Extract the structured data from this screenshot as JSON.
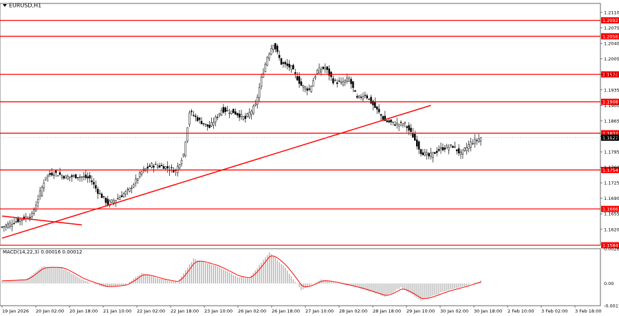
{
  "symbol_label": "EURUSD,H1",
  "macd_label": "MACD(14,22,3) 0.00016 0.00012",
  "current_price_label": "1.1827",
  "colors": {
    "bull_candle": "#ffffff",
    "bear_candle": "#000000",
    "levels": "#ff0000",
    "trendline": "#ff0000",
    "macd_hist": "#b0b0b0",
    "macd_signal": "#ff0000",
    "grid_bg": "#ffffff"
  },
  "chart_data": [
    {
      "type": "candlestick",
      "title": "EURUSD,H1",
      "ylim": [
        1.1584,
        1.2124
      ],
      "y_ticks": [
        "1.2110",
        "1.2075",
        "1.2040",
        "1.2005",
        "1.1970",
        "1.1935",
        "1.1900",
        "1.1865",
        "1.1830",
        "1.1795",
        "1.1760",
        "1.1725",
        "1.1690",
        "1.1655",
        "1.1620"
      ],
      "x_tick_labels": [
        "19 Jan 2026",
        "20 Jan 02:00",
        "20 Jan 18:00",
        "21 Jan 10:00",
        "22 Jan 02:00",
        "22 Jan 18:00",
        "23 Jan 10:00",
        "26 Jan 02:00",
        "26 Jan 18:00",
        "27 Jan 10:00",
        "28 Jan 02:00",
        "28 Jan 18:00",
        "29 Jan 10:00",
        "30 Jan 02:00",
        "30 Jan 18:00",
        "2 Feb 10:00",
        "3 Feb 02:00",
        "3 Feb 18:00"
      ],
      "horizontal_levels": [
        {
          "label": "1.2092",
          "value": 1.2092
        },
        {
          "label": "1.2056",
          "value": 1.2056
        },
        {
          "label": "1.1970",
          "value": 1.197
        },
        {
          "label": "1.1908",
          "value": 1.1908
        },
        {
          "label": "1.1837",
          "value": 1.1837
        },
        {
          "label": "1.1754",
          "value": 1.1754
        },
        {
          "label": "1.1666",
          "value": 1.1666
        },
        {
          "label": "1.1584",
          "value": 1.1584
        }
      ],
      "current_price": 1.1827,
      "trendlines": [
        {
          "from_bar": 0,
          "to_bar": 215,
          "from": 1.16,
          "to": 1.19
        },
        {
          "from_bar": 0,
          "to_bar": 40,
          "from": 1.165,
          "to": 1.163
        }
      ],
      "close_path": [
        {
          "bar": 0,
          "close": 1.1625
        },
        {
          "bar": 8,
          "close": 1.164
        },
        {
          "bar": 15,
          "close": 1.1652
        },
        {
          "bar": 18,
          "close": 1.169
        },
        {
          "bar": 22,
          "close": 1.174
        },
        {
          "bar": 26,
          "close": 1.1748
        },
        {
          "bar": 32,
          "close": 1.1738
        },
        {
          "bar": 38,
          "close": 1.174
        },
        {
          "bar": 44,
          "close": 1.1735
        },
        {
          "bar": 48,
          "close": 1.1705
        },
        {
          "bar": 53,
          "close": 1.1678
        },
        {
          "bar": 58,
          "close": 1.169
        },
        {
          "bar": 64,
          "close": 1.171
        },
        {
          "bar": 70,
          "close": 1.175
        },
        {
          "bar": 75,
          "close": 1.1765
        },
        {
          "bar": 81,
          "close": 1.1762
        },
        {
          "bar": 87,
          "close": 1.1752
        },
        {
          "bar": 91,
          "close": 1.179
        },
        {
          "bar": 94,
          "close": 1.1885
        },
        {
          "bar": 99,
          "close": 1.1865
        },
        {
          "bar": 104,
          "close": 1.185
        },
        {
          "bar": 110,
          "close": 1.189
        },
        {
          "bar": 116,
          "close": 1.1885
        },
        {
          "bar": 122,
          "close": 1.187
        },
        {
          "bar": 127,
          "close": 1.19
        },
        {
          "bar": 130,
          "close": 1.196
        },
        {
          "bar": 133,
          "close": 1.201
        },
        {
          "bar": 136,
          "close": 1.204
        },
        {
          "bar": 140,
          "close": 1.1995
        },
        {
          "bar": 145,
          "close": 1.1985
        },
        {
          "bar": 150,
          "close": 1.1945
        },
        {
          "bar": 154,
          "close": 1.1935
        },
        {
          "bar": 158,
          "close": 1.1978
        },
        {
          "bar": 162,
          "close": 1.1985
        },
        {
          "bar": 166,
          "close": 1.1955
        },
        {
          "bar": 170,
          "close": 1.195
        },
        {
          "bar": 174,
          "close": 1.196
        },
        {
          "bar": 178,
          "close": 1.1915
        },
        {
          "bar": 182,
          "close": 1.1925
        },
        {
          "bar": 187,
          "close": 1.1895
        },
        {
          "bar": 192,
          "close": 1.1865
        },
        {
          "bar": 197,
          "close": 1.1858
        },
        {
          "bar": 202,
          "close": 1.1858
        },
        {
          "bar": 206,
          "close": 1.183
        },
        {
          "bar": 210,
          "close": 1.1795
        },
        {
          "bar": 214,
          "close": 1.1785
        },
        {
          "bar": 220,
          "close": 1.1802
        },
        {
          "bar": 226,
          "close": 1.1808
        },
        {
          "bar": 230,
          "close": 1.179
        },
        {
          "bar": 235,
          "close": 1.1815
        },
        {
          "bar": 240,
          "close": 1.1827
        }
      ]
    },
    {
      "type": "bar",
      "title": "MACD(14,22,3) 0.00016 0.00012",
      "ylim": [
        -0.00171,
        0.00267
      ],
      "y_ticks": [
        "0.00267",
        "0.00",
        "-0.00171"
      ],
      "series": [
        {
          "name": "MACD",
          "points": [
            {
              "bar": 0,
              "value": 0.0002
            },
            {
              "bar": 12,
              "value": 0.0003
            },
            {
              "bar": 20,
              "value": 0.0013
            },
            {
              "bar": 30,
              "value": 0.0012
            },
            {
              "bar": 40,
              "value": 0.0003
            },
            {
              "bar": 52,
              "value": -0.0003
            },
            {
              "bar": 62,
              "value": -0.0001
            },
            {
              "bar": 70,
              "value": 0.0008
            },
            {
              "bar": 80,
              "value": 0.0003
            },
            {
              "bar": 88,
              "value": 0.0001
            },
            {
              "bar": 96,
              "value": 0.0019
            },
            {
              "bar": 108,
              "value": 0.0013
            },
            {
              "bar": 118,
              "value": 0.0005
            },
            {
              "bar": 124,
              "value": 0.0004
            },
            {
              "bar": 134,
              "value": 0.0024
            },
            {
              "bar": 142,
              "value": 0.0012
            },
            {
              "bar": 150,
              "value": -0.0005
            },
            {
              "bar": 160,
              "value": 0.0003
            },
            {
              "bar": 172,
              "value": -0.0001
            },
            {
              "bar": 180,
              "value": -0.0004
            },
            {
              "bar": 192,
              "value": -0.001
            },
            {
              "bar": 200,
              "value": -0.0003
            },
            {
              "bar": 210,
              "value": -0.0013
            },
            {
              "bar": 222,
              "value": -0.0006
            },
            {
              "bar": 232,
              "value": -0.0002
            },
            {
              "bar": 240,
              "value": 0.0002
            }
          ]
        }
      ]
    }
  ]
}
